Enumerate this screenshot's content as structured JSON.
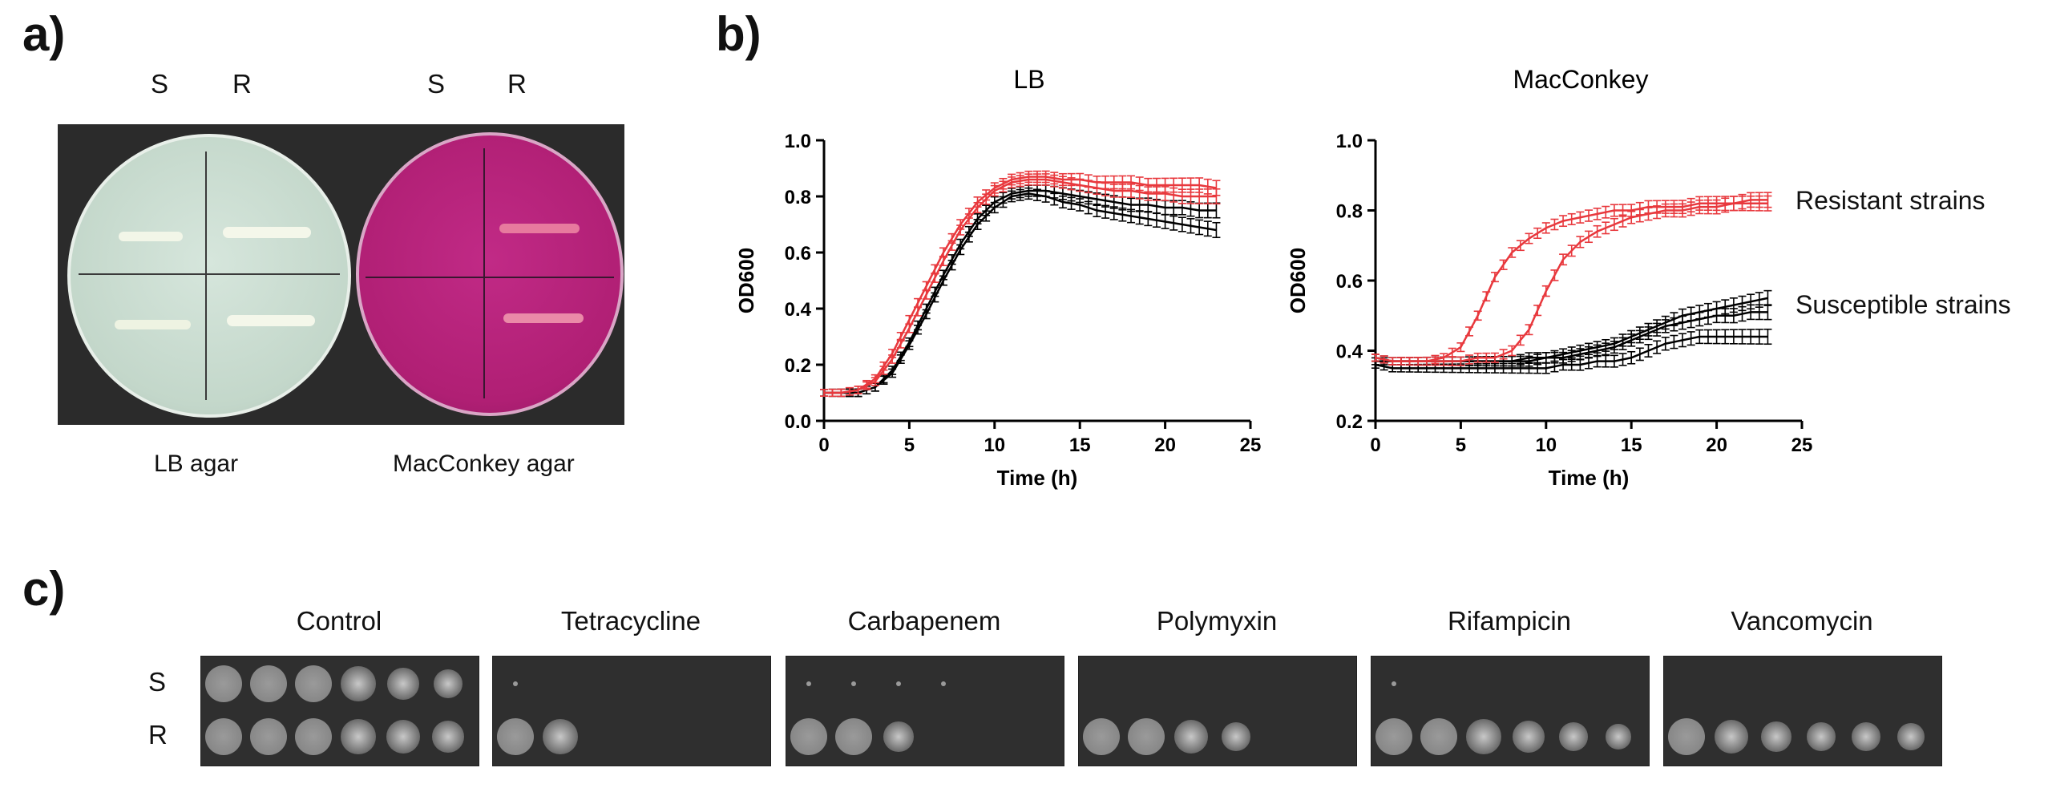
{
  "panel_a": {
    "letter": "a)",
    "s_label": "S",
    "r_label": "R",
    "plates": [
      {
        "caption": "LB agar"
      },
      {
        "caption": "MacConkey agar"
      }
    ]
  },
  "panel_b": {
    "letter": "b)",
    "annotations": {
      "resistant": "Resistant strains",
      "susceptible": "Susceptible strains"
    }
  },
  "panel_c": {
    "letter": "c)",
    "row_labels": [
      "S",
      "R"
    ],
    "conditions": [
      {
        "name": "Control"
      },
      {
        "name": "Tetracycline"
      },
      {
        "name": "Carbapenem"
      },
      {
        "name": "Polymyxin"
      },
      {
        "name": "Rifampicin"
      },
      {
        "name": "Vancomycin"
      }
    ]
  },
  "colors": {
    "resistant": "#e8383d",
    "susceptible": "#000000",
    "lb_agar": "#c9dccf",
    "macconkey_agar": "#b8237a"
  },
  "chart_data": [
    {
      "type": "line",
      "title": "LB",
      "xlabel": "Time (h)",
      "ylabel": "OD600",
      "xlim": [
        0,
        25
      ],
      "ylim": [
        0.0,
        1.0
      ],
      "xticks": [
        0,
        5,
        10,
        15,
        20,
        25
      ],
      "yticks": [
        0.0,
        0.2,
        0.4,
        0.6,
        0.8,
        1.0
      ],
      "ytick_labels": [
        "0.0",
        "0.2",
        "0.4",
        "0.6",
        "0.8",
        "1.0"
      ],
      "x": [
        0,
        1,
        2,
        3,
        4,
        5,
        6,
        7,
        8,
        9,
        10,
        11,
        12,
        13,
        14,
        15,
        16,
        17,
        18,
        19,
        20,
        21,
        22,
        23
      ],
      "series": [
        {
          "group": "resistant",
          "values": [
            0.1,
            0.1,
            0.11,
            0.15,
            0.24,
            0.36,
            0.48,
            0.6,
            0.7,
            0.78,
            0.83,
            0.86,
            0.87,
            0.87,
            0.86,
            0.86,
            0.85,
            0.85,
            0.85,
            0.84,
            0.84,
            0.84,
            0.84,
            0.83
          ]
        },
        {
          "group": "resistant",
          "values": [
            0.1,
            0.1,
            0.11,
            0.14,
            0.22,
            0.33,
            0.45,
            0.57,
            0.68,
            0.76,
            0.82,
            0.85,
            0.86,
            0.86,
            0.85,
            0.84,
            0.83,
            0.82,
            0.82,
            0.81,
            0.81,
            0.8,
            0.8,
            0.8
          ]
        },
        {
          "group": "susceptible",
          "values": [
            0.1,
            0.1,
            0.1,
            0.12,
            0.18,
            0.28,
            0.4,
            0.52,
            0.63,
            0.72,
            0.78,
            0.81,
            0.82,
            0.82,
            0.81,
            0.8,
            0.79,
            0.78,
            0.77,
            0.77,
            0.76,
            0.76,
            0.75,
            0.75
          ]
        },
        {
          "group": "susceptible",
          "values": [
            0.1,
            0.1,
            0.1,
            0.12,
            0.17,
            0.27,
            0.38,
            0.5,
            0.61,
            0.7,
            0.76,
            0.8,
            0.81,
            0.8,
            0.78,
            0.77,
            0.75,
            0.74,
            0.73,
            0.72,
            0.71,
            0.7,
            0.69,
            0.68
          ]
        }
      ]
    },
    {
      "type": "line",
      "title": "MacConkey",
      "xlabel": "Time (h)",
      "ylabel": "OD600",
      "xlim": [
        0,
        25
      ],
      "ylim": [
        0.2,
        1.0
      ],
      "xticks": [
        0,
        5,
        10,
        15,
        20,
        25
      ],
      "yticks": [
        0.2,
        0.4,
        0.6,
        0.8,
        1.0
      ],
      "ytick_labels": [
        "0.2",
        "0.4",
        "0.6",
        "0.8",
        "1.0"
      ],
      "x": [
        0,
        1,
        2,
        3,
        4,
        5,
        6,
        7,
        8,
        9,
        10,
        11,
        12,
        13,
        14,
        15,
        16,
        17,
        18,
        19,
        20,
        21,
        22,
        23
      ],
      "series": [
        {
          "group": "resistant",
          "values": [
            0.38,
            0.37,
            0.37,
            0.37,
            0.38,
            0.41,
            0.5,
            0.61,
            0.68,
            0.72,
            0.75,
            0.77,
            0.78,
            0.79,
            0.8,
            0.8,
            0.81,
            0.81,
            0.81,
            0.82,
            0.82,
            0.82,
            0.83,
            0.83
          ]
        },
        {
          "group": "resistant",
          "values": [
            0.38,
            0.37,
            0.37,
            0.37,
            0.37,
            0.37,
            0.38,
            0.38,
            0.4,
            0.46,
            0.57,
            0.66,
            0.71,
            0.74,
            0.76,
            0.78,
            0.79,
            0.8,
            0.8,
            0.81,
            0.81,
            0.82,
            0.82,
            0.82
          ]
        },
        {
          "group": "susceptible",
          "values": [
            0.38,
            0.37,
            0.37,
            0.37,
            0.37,
            0.37,
            0.37,
            0.37,
            0.37,
            0.38,
            0.38,
            0.39,
            0.4,
            0.41,
            0.42,
            0.44,
            0.46,
            0.48,
            0.5,
            0.51,
            0.52,
            0.53,
            0.54,
            0.55
          ]
        },
        {
          "group": "susceptible",
          "values": [
            0.37,
            0.37,
            0.37,
            0.37,
            0.37,
            0.37,
            0.37,
            0.37,
            0.37,
            0.37,
            0.38,
            0.38,
            0.39,
            0.4,
            0.41,
            0.43,
            0.45,
            0.47,
            0.48,
            0.49,
            0.5,
            0.5,
            0.51,
            0.51
          ]
        },
        {
          "group": "susceptible",
          "values": [
            0.36,
            0.35,
            0.35,
            0.35,
            0.35,
            0.35,
            0.35,
            0.35,
            0.35,
            0.35,
            0.35,
            0.36,
            0.36,
            0.37,
            0.37,
            0.38,
            0.4,
            0.42,
            0.43,
            0.44,
            0.44,
            0.44,
            0.44,
            0.44
          ]
        }
      ]
    }
  ]
}
